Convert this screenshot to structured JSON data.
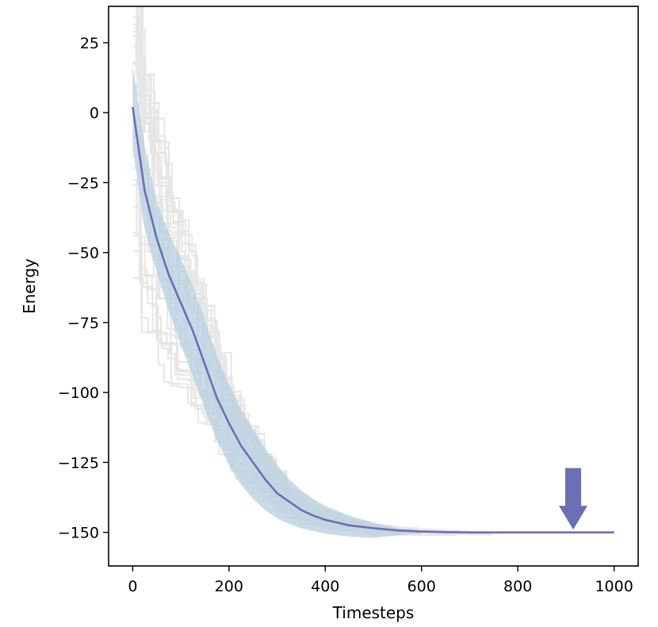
{
  "chart_data": {
    "type": "line",
    "title": "",
    "xlabel": "Timesteps",
    "ylabel": "Energy",
    "xlim": [
      -50,
      1050
    ],
    "ylim": [
      -162,
      38
    ],
    "xticks": [
      0,
      200,
      400,
      600,
      800,
      1000
    ],
    "yticks": [
      25,
      0,
      -25,
      -50,
      -75,
      -100,
      -125,
      -150
    ],
    "xtick_labels": [
      "0",
      "200",
      "400",
      "600",
      "800",
      "1000"
    ],
    "ytick_labels": [
      "25",
      "0",
      "−25",
      "−50",
      "−75",
      "−100",
      "−125",
      "−150"
    ],
    "grid": false,
    "legend": "none",
    "mean": {
      "x": [
        0,
        25,
        50,
        75,
        100,
        125,
        150,
        175,
        200,
        225,
        250,
        275,
        300,
        325,
        350,
        375,
        400,
        450,
        500,
        550,
        600,
        650,
        700,
        800,
        900,
        1000
      ],
      "y": [
        2,
        -28,
        -45,
        -58,
        -68,
        -78,
        -90,
        -102,
        -111,
        -119,
        -125,
        -131,
        -136,
        -139,
        -142,
        -144,
        -145.5,
        -147.5,
        -148.5,
        -149.3,
        -149.7,
        -149.9,
        -150,
        -150,
        -150,
        -150
      ]
    },
    "band": {
      "x": [
        0,
        25,
        50,
        75,
        100,
        125,
        150,
        175,
        200,
        225,
        250,
        275,
        300,
        325,
        350,
        375,
        400,
        450,
        500,
        550,
        600
      ],
      "upper": [
        17,
        -12,
        -32,
        -43,
        -52,
        -62,
        -74,
        -87,
        -97,
        -106,
        -113,
        -120,
        -126,
        -131,
        -135,
        -138,
        -140.5,
        -144,
        -146.5,
        -148.5,
        -149.5
      ],
      "lower": [
        -13,
        -42,
        -57,
        -71,
        -83,
        -94,
        -106,
        -117,
        -126,
        -133,
        -138,
        -142,
        -145,
        -147,
        -148.5,
        -149.5,
        -150.5,
        -151.5,
        -152,
        -151,
        -150.3
      ]
    },
    "colors": {
      "mean": "#6b6fb5",
      "band": "#b8cfe0",
      "runs": "#e6e6e6",
      "arrow": "#6b6fb5"
    },
    "annotation": {
      "type": "arrow-down",
      "x": 915,
      "y_top": -127,
      "y_bottom": -149
    }
  }
}
